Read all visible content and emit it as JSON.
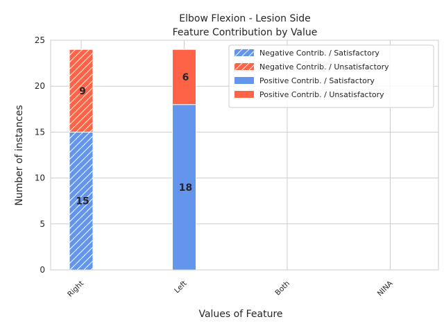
{
  "chart_data": {
    "type": "bar",
    "title_line1": "Elbow Flexion - Lesion Side",
    "title_line2": "Feature Contribution by Value",
    "xlabel": "Values of Feature",
    "ylabel": "Number of instances",
    "categories": [
      "Right",
      "Left",
      "Both",
      "NINA"
    ],
    "ylim": [
      0,
      25
    ],
    "yticks": [
      "0",
      "5",
      "10",
      "15",
      "20",
      "25"
    ],
    "grid": true,
    "legend_position": "top-right",
    "series": [
      {
        "name": "Negative Contrib. / Satisfactory",
        "group": "negative",
        "color": "#6495ED",
        "hatch": true,
        "values": [
          15,
          0,
          0,
          0
        ]
      },
      {
        "name": "Negative Contrib. / Unsatisfactory",
        "group": "negative",
        "color": "#FF6347",
        "hatch": true,
        "values": [
          9,
          0,
          0,
          0
        ]
      },
      {
        "name": "Positive Contrib. / Satisfactory",
        "group": "positive",
        "color": "#6495ED",
        "hatch": false,
        "values": [
          0,
          18,
          0,
          0
        ]
      },
      {
        "name": "Positive Contrib. / Unsatisfactory",
        "group": "positive",
        "color": "#FF6347",
        "hatch": false,
        "values": [
          0,
          6,
          0,
          0
        ]
      }
    ]
  }
}
